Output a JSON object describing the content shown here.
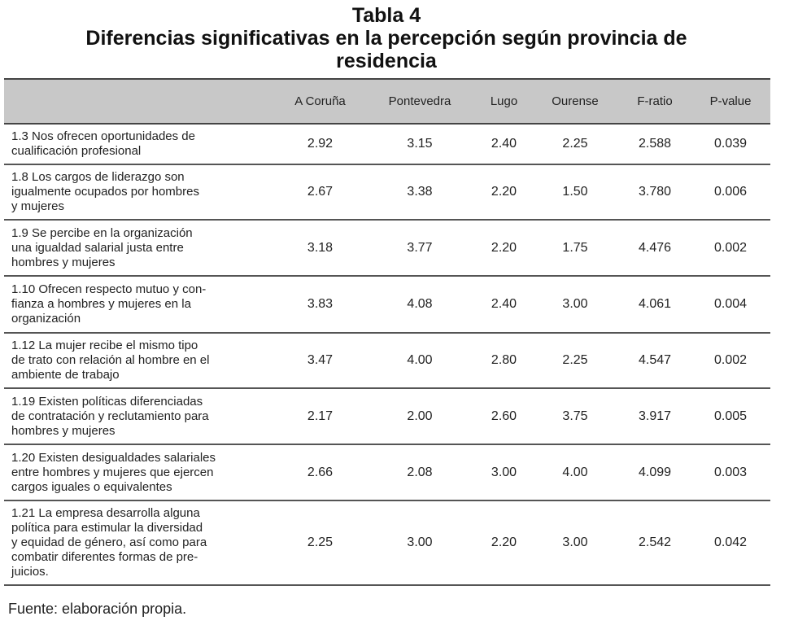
{
  "document": {
    "table_number": "Tabla 4",
    "title_line1": "Diferencias significativas en la percepción según provincia de",
    "title_line2": "residencia",
    "footer": "Fuente: elaboración propia."
  },
  "table": {
    "header_fill": "#c8c8c8",
    "columns": [
      "",
      "A Coruña",
      "Pontevedra",
      "Lugo",
      "Ourense",
      "F-ratio",
      "P-value"
    ],
    "rows": [
      {
        "item": "1.3 Nos ofrecen oportunidades de cualificación profesional",
        "lines": [
          "1.3 Nos ofrecen oportunidades de",
          "cualificación profesional"
        ],
        "a_coruna": "2.92",
        "pontevedra": "3.15",
        "lugo": "2.40",
        "ourense": "2.25",
        "f_ratio": "2.588",
        "p_value": "0.039"
      },
      {
        "item": "1.8 Los cargos de liderazgo son igualmente ocupados por hombres y mujeres",
        "lines": [
          "1.8 Los cargos de liderazgo son",
          "igualmente ocupados por hombres",
          "y mujeres"
        ],
        "a_coruna": "2.67",
        "pontevedra": "3.38",
        "lugo": "2.20",
        "ourense": "1.50",
        "f_ratio": "3.780",
        "p_value": "0.006"
      },
      {
        "item": "1.9 Se percibe en la organización una igualdad salarial justa entre hombres y mujeres",
        "lines": [
          "1.9 Se percibe en la organización",
          "una igualdad salarial justa entre",
          "hombres y mujeres"
        ],
        "a_coruna": "3.18",
        "pontevedra": "3.77",
        "lugo": "2.20",
        "ourense": "1.75",
        "f_ratio": "4.476",
        "p_value": "0.002"
      },
      {
        "item": "1.10 Ofrecen respecto mutuo y confianza a hombres y mujeres en la organización",
        "lines": [
          "1.10 Ofrecen respecto mutuo y con-",
          "fianza a hombres y mujeres en la",
          "organización"
        ],
        "a_coruna": "3.83",
        "pontevedra": "4.08",
        "lugo": "2.40",
        "ourense": "3.00",
        "f_ratio": "4.061",
        "p_value": "0.004"
      },
      {
        "item": "1.12 La mujer recibe el mismo tipo de trato con relación al hombre en el ambiente de trabajo",
        "lines": [
          "1.12 La mujer recibe el mismo tipo",
          "de trato con relación al hombre en el",
          "ambiente de trabajo"
        ],
        "a_coruna": "3.47",
        "pontevedra": "4.00",
        "lugo": "2.80",
        "ourense": "2.25",
        "f_ratio": "4.547",
        "p_value": "0.002"
      },
      {
        "item": "1.19 Existen políticas diferenciadas de contratación y reclutamiento para hombres y mujeres",
        "lines": [
          "1.19 Existen políticas diferenciadas",
          "de contratación y reclutamiento para",
          "hombres y mujeres"
        ],
        "a_coruna": "2.17",
        "pontevedra": "2.00",
        "lugo": "2.60",
        "ourense": "3.75",
        "f_ratio": "3.917",
        "p_value": "0.005"
      },
      {
        "item": "1.20 Existen desigualdades salariales entre hombres y mujeres que ejercen cargos iguales o equivalentes",
        "lines": [
          "1.20 Existen desigualdades salariales",
          "entre hombres y mujeres que ejercen",
          "cargos iguales o equivalentes"
        ],
        "a_coruna": "2.66",
        "pontevedra": "2.08",
        "lugo": "3.00",
        "ourense": "4.00",
        "f_ratio": "4.099",
        "p_value": "0.003"
      },
      {
        "item": "1.21 La empresa desarrolla alguna política para estimular la diversidad y equidad de género, así como para combatir diferentes formas de prejuicios.",
        "lines": [
          "1.21 La empresa desarrolla alguna",
          "política para estimular la diversidad",
          "y equidad de género, así como para",
          "combatir diferentes formas de pre-",
          "juicios."
        ],
        "a_coruna": "2.25",
        "pontevedra": "3.00",
        "lugo": "2.20",
        "ourense": "3.00",
        "f_ratio": "2.542",
        "p_value": "0.042"
      }
    ]
  }
}
